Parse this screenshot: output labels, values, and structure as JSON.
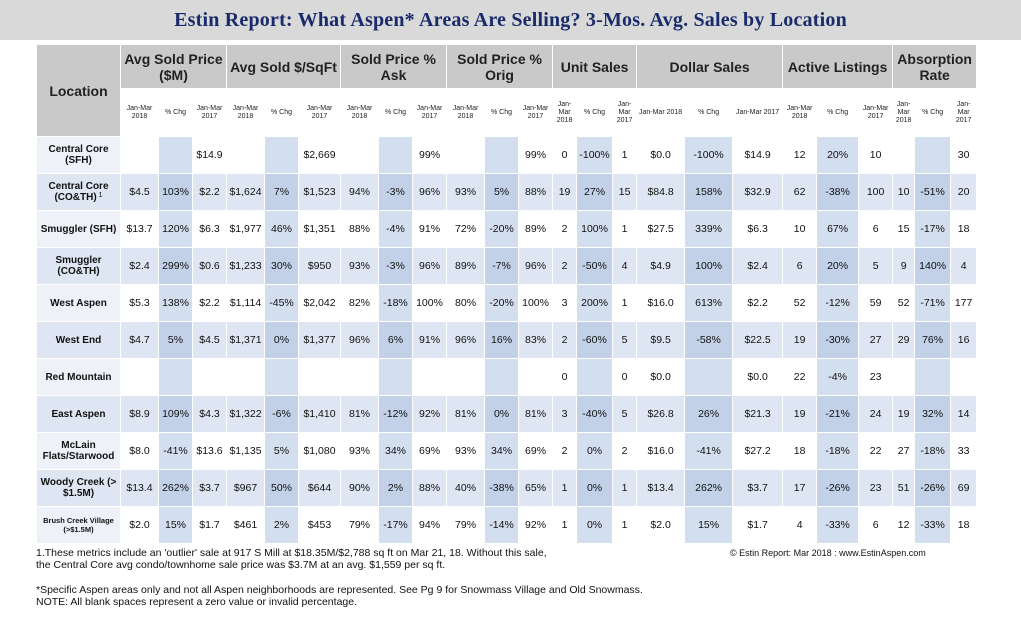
{
  "header": {
    "title": "Estin Report: What Aspen* Areas Are Selling? 3-Mos. Avg. Sales by Location"
  },
  "chart_data": {
    "type": "table",
    "groups": [
      "Location",
      "Avg Sold Price ($M)",
      "Avg Sold $/SqFt",
      "Sold Price % Ask",
      "Sold Price % Orig",
      "Unit Sales",
      "Dollar Sales",
      "Active Listings",
      "Absorption Rate"
    ],
    "subheaders": [
      "Jan-Mar 2018",
      "% Chg",
      "Jan-Mar 2017"
    ],
    "rows": [
      {
        "location": "Central Core (SFH)",
        "cells": [
          "",
          "",
          "$14.9",
          "",
          "",
          "$2,669",
          "",
          "",
          "99%",
          "",
          "",
          "99%",
          "0",
          "-100%",
          "1",
          "$0.0",
          "-100%",
          "$14.9",
          "12",
          "20%",
          "10",
          "",
          "",
          "30"
        ]
      },
      {
        "location": "Central Core (CO&TH)",
        "footnote": "1",
        "cells": [
          "$4.5",
          "103%",
          "$2.2",
          "$1,624",
          "7%",
          "$1,523",
          "94%",
          "-3%",
          "96%",
          "93%",
          "5%",
          "88%",
          "19",
          "27%",
          "15",
          "$84.8",
          "158%",
          "$32.9",
          "62",
          "-38%",
          "100",
          "10",
          "-51%",
          "20"
        ]
      },
      {
        "location": "Smuggler (SFH)",
        "cells": [
          "$13.7",
          "120%",
          "$6.3",
          "$1,977",
          "46%",
          "$1,351",
          "88%",
          "-4%",
          "91%",
          "72%",
          "-20%",
          "89%",
          "2",
          "100%",
          "1",
          "$27.5",
          "339%",
          "$6.3",
          "10",
          "67%",
          "6",
          "15",
          "-17%",
          "18"
        ]
      },
      {
        "location": "Smuggler (CO&TH)",
        "cells": [
          "$2.4",
          "299%",
          "$0.6",
          "$1,233",
          "30%",
          "$950",
          "93%",
          "-3%",
          "96%",
          "89%",
          "-7%",
          "96%",
          "2",
          "-50%",
          "4",
          "$4.9",
          "100%",
          "$2.4",
          "6",
          "20%",
          "5",
          "9",
          "140%",
          "4"
        ]
      },
      {
        "location": "West Aspen",
        "cells": [
          "$5.3",
          "138%",
          "$2.2",
          "$1,114",
          "-45%",
          "$2,042",
          "82%",
          "-18%",
          "100%",
          "80%",
          "-20%",
          "100%",
          "3",
          "200%",
          "1",
          "$16.0",
          "613%",
          "$2.2",
          "52",
          "-12%",
          "59",
          "52",
          "-71%",
          "177"
        ]
      },
      {
        "location": "West End",
        "cells": [
          "$4.7",
          "5%",
          "$4.5",
          "$1,371",
          "0%",
          "$1,377",
          "96%",
          "6%",
          "91%",
          "96%",
          "16%",
          "83%",
          "2",
          "-60%",
          "5",
          "$9.5",
          "-58%",
          "$22.5",
          "19",
          "-30%",
          "27",
          "29",
          "76%",
          "16"
        ]
      },
      {
        "location": "Red Mountain",
        "cells": [
          "",
          "",
          "",
          "",
          "",
          "",
          "",
          "",
          "",
          "",
          "",
          "",
          "0",
          "",
          "0",
          "$0.0",
          "",
          "$0.0",
          "22",
          "-4%",
          "23",
          "",
          "",
          ""
        ]
      },
      {
        "location": "East Aspen",
        "cells": [
          "$8.9",
          "109%",
          "$4.3",
          "$1,322",
          "-6%",
          "$1,410",
          "81%",
          "-12%",
          "92%",
          "81%",
          "0%",
          "81%",
          "3",
          "-40%",
          "5",
          "$26.8",
          "26%",
          "$21.3",
          "19",
          "-21%",
          "24",
          "19",
          "32%",
          "14"
        ]
      },
      {
        "location": "McLain Flats/Starwood",
        "cells": [
          "$8.0",
          "-41%",
          "$13.6",
          "$1,135",
          "5%",
          "$1,080",
          "93%",
          "34%",
          "69%",
          "93%",
          "34%",
          "69%",
          "2",
          "0%",
          "2",
          "$16.0",
          "-41%",
          "$27.2",
          "18",
          "-18%",
          "22",
          "27",
          "-18%",
          "33"
        ]
      },
      {
        "location": "Woody Creek (> $1.5M)",
        "cells": [
          "$13.4",
          "262%",
          "$3.7",
          "$967",
          "50%",
          "$644",
          "90%",
          "2%",
          "88%",
          "40%",
          "-38%",
          "65%",
          "1",
          "0%",
          "1",
          "$13.4",
          "262%",
          "$3.7",
          "17",
          "-26%",
          "23",
          "51",
          "-26%",
          "69"
        ]
      },
      {
        "location": "Brush Creek Village (>$1.5M)",
        "small": true,
        "cells": [
          "$2.0",
          "15%",
          "$1.7",
          "$461",
          "2%",
          "$453",
          "79%",
          "-17%",
          "94%",
          "79%",
          "-14%",
          "92%",
          "1",
          "0%",
          "1",
          "$2.0",
          "15%",
          "$1.7",
          "4",
          "-33%",
          "6",
          "12",
          "-33%",
          "18"
        ]
      }
    ]
  },
  "footer": {
    "note1_line1": "1.These metrics include an 'outlier' sale at 917 S Mill at $18.35M/$2,788 sq ft on Mar 21, 18. Without this sale,",
    "note1_line2": "the Central Core avg condo/townhome sale price was $3.7M at an avg. $1,559 per sq ft.",
    "copyright": "© Estin Report: Mar 2018 : www.EstinAspen.com",
    "note2_line1": "*Specific Aspen areas only and not all Aspen neighborhoods are represented. See Pg 9 for Snowmass Village and Old Snowmass.",
    "note2_line2": "NOTE: All blank spaces represent a zero value or invalid percentage."
  },
  "colors": {
    "title": "#1a2b6b",
    "header_bg": "#c9c9c9",
    "row_band": "#dde6f2",
    "chg_col": "#c2d1e8"
  }
}
